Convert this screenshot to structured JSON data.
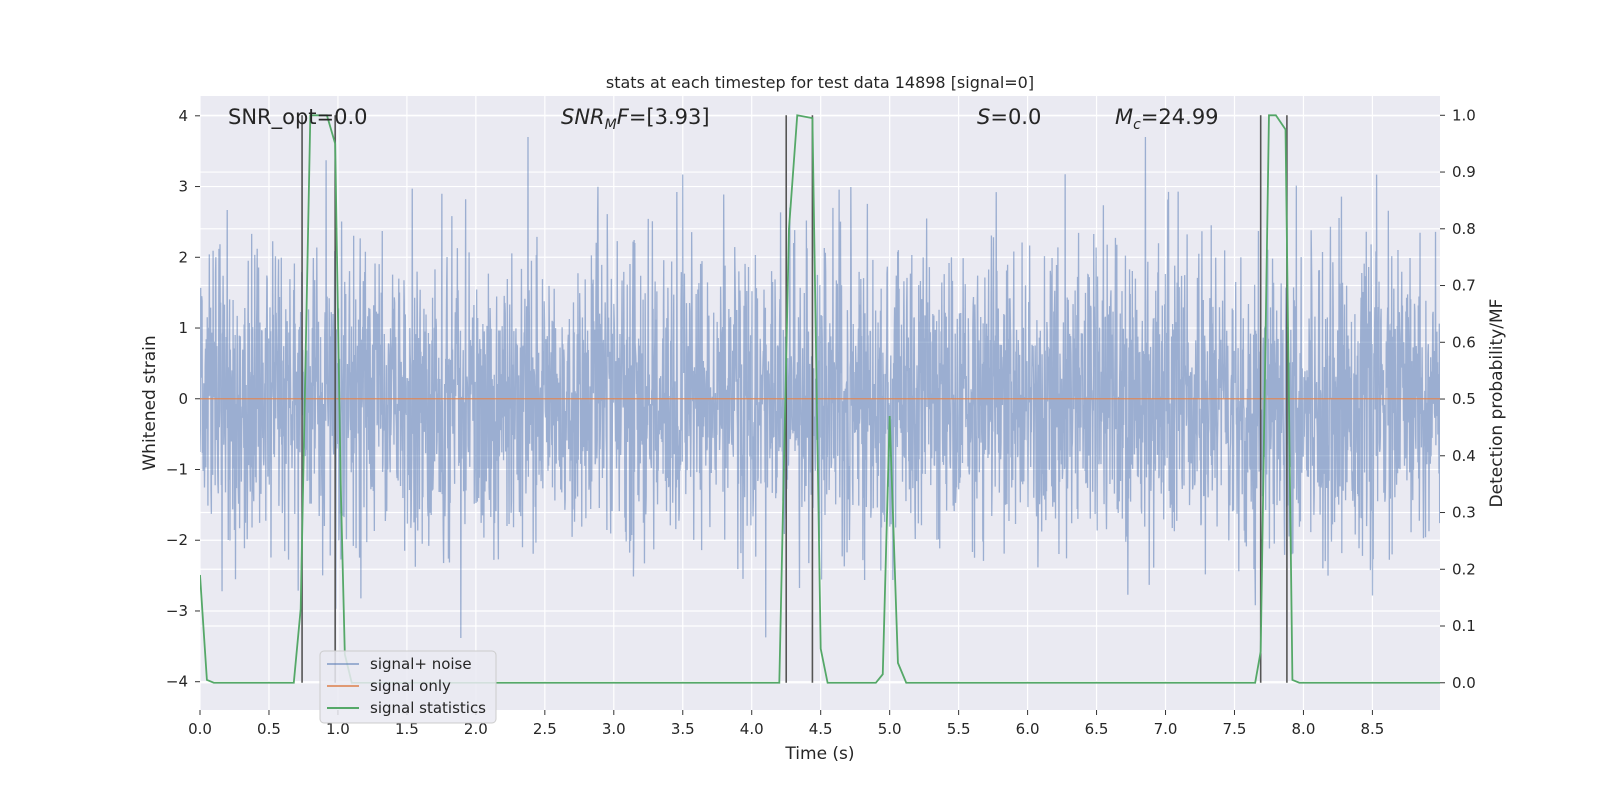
{
  "chart_data": {
    "type": "line",
    "title": "stats at each timestep for test data 14898 [signal=0]",
    "xlabel": "Time (s)",
    "ylabel_left": "Whitened strain",
    "ylabel_right": "Detection probability/MF",
    "xlim": [
      0,
      8.99
    ],
    "ylim_left": [
      -4.4,
      4.28
    ],
    "ylim_right": [
      -0.048,
      1.034
    ],
    "grid": true,
    "legend_position": "lower-left",
    "x_ticks": [
      "0.0",
      "0.5",
      "1.0",
      "1.5",
      "2.0",
      "2.5",
      "3.0",
      "3.5",
      "4.0",
      "4.5",
      "5.0",
      "5.5",
      "6.0",
      "6.5",
      "7.0",
      "7.5",
      "8.0",
      "8.5"
    ],
    "x_tick_values": [
      0,
      0.5,
      1,
      1.5,
      2,
      2.5,
      3,
      3.5,
      4,
      4.5,
      5,
      5.5,
      6,
      6.5,
      7,
      7.5,
      8,
      8.5
    ],
    "y_left_ticks": [
      "−4",
      "−3",
      "−2",
      "−1",
      "0",
      "1",
      "2",
      "3",
      "4"
    ],
    "y_left_tick_values": [
      -4,
      -3,
      -2,
      -1,
      0,
      1,
      2,
      3,
      4
    ],
    "y_right_ticks": [
      "0.0",
      "0.1",
      "0.2",
      "0.3",
      "0.4",
      "0.5",
      "0.6",
      "0.7",
      "0.8",
      "0.9",
      "1.0"
    ],
    "y_right_tick_values": [
      0,
      0.1,
      0.2,
      0.3,
      0.4,
      0.5,
      0.6,
      0.7,
      0.8,
      0.9,
      1.0
    ],
    "annotations": {
      "snr_opt": "SNR_opt=0.0",
      "snr_mf_base": "SNR",
      "snr_mf_sub": "M",
      "snr_mf_base2": "F",
      "snr_mf_value": "=[3.93]",
      "s_var": "S",
      "s_value": "=0.0",
      "mc_base": "M",
      "mc_sub": "c",
      "mc_value": "=24.99"
    },
    "series": [
      {
        "name": "signal+ noise",
        "color": "#4c72b0",
        "style": "whitened strain noise trace, amplitude about ±2 with peaks to about ±3.7",
        "x_range": [
          0,
          8.99
        ]
      },
      {
        "name": "signal only",
        "color": "#dd8452",
        "x": [
          0,
          8.99
        ],
        "y": [
          0,
          0
        ]
      },
      {
        "name": "signal statistics",
        "color": "#55a868",
        "x": [
          0,
          0.05,
          0.1,
          0.68,
          0.73,
          0.8,
          0.92,
          0.98,
          1.02,
          1.05,
          1.1,
          4.2,
          4.27,
          4.33,
          4.44,
          4.5,
          4.55,
          4.65,
          4.9,
          4.95,
          5.0,
          5.06,
          5.12,
          7.65,
          7.69,
          7.75,
          7.8,
          7.87,
          7.92,
          7.97,
          8.99
        ],
        "y": [
          0.19,
          0.005,
          0.0,
          0.0,
          0.13,
          1.0,
          1.0,
          0.95,
          0.35,
          0.05,
          0.0,
          0.0,
          0.8,
          1.0,
          0.995,
          0.06,
          0.0,
          0.0,
          0.0,
          0.015,
          0.47,
          0.035,
          0.0,
          0.0,
          0.055,
          1.0,
          1.0,
          0.975,
          0.005,
          0.0,
          0.0
        ]
      }
    ],
    "vertical_markers_x": [
      0.74,
      0.98,
      4.25,
      4.44,
      7.69,
      7.88
    ],
    "vertical_markers_color": "#555555"
  }
}
